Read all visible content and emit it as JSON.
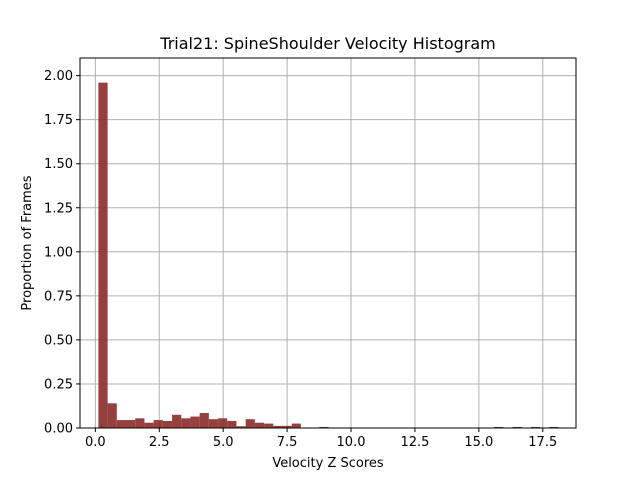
{
  "chart_data": {
    "type": "bar",
    "title": "Trial21: SpineShoulder Velocity Histogram",
    "xlabel": "Velocity Z Scores",
    "ylabel": "Proportion of Frames",
    "xlim": [
      -0.6,
      18.8
    ],
    "ylim": [
      0,
      2.1
    ],
    "xticks": [
      0.0,
      2.5,
      5.0,
      7.5,
      10.0,
      12.5,
      15.0,
      17.5
    ],
    "xtick_labels": [
      "0.0",
      "2.5",
      "5.0",
      "7.5",
      "10.0",
      "12.5",
      "15.0",
      "17.5"
    ],
    "yticks": [
      0.0,
      0.25,
      0.5,
      0.75,
      1.0,
      1.25,
      1.5,
      1.75,
      2.0
    ],
    "ytick_labels": [
      "0.00",
      "0.25",
      "0.50",
      "0.75",
      "1.00",
      "1.25",
      "1.50",
      "1.75",
      "2.00"
    ],
    "grid": true,
    "bar_color": "#8b2a2a",
    "bin_width": 0.36,
    "bins": [
      {
        "x": 0.3,
        "value": 1.96
      },
      {
        "x": 0.66,
        "value": 0.14
      },
      {
        "x": 1.02,
        "value": 0.045
      },
      {
        "x": 1.38,
        "value": 0.045
      },
      {
        "x": 1.74,
        "value": 0.055
      },
      {
        "x": 2.1,
        "value": 0.03
      },
      {
        "x": 2.46,
        "value": 0.045
      },
      {
        "x": 2.82,
        "value": 0.04
      },
      {
        "x": 3.18,
        "value": 0.075
      },
      {
        "x": 3.54,
        "value": 0.055
      },
      {
        "x": 3.9,
        "value": 0.065
      },
      {
        "x": 4.26,
        "value": 0.085
      },
      {
        "x": 4.62,
        "value": 0.05
      },
      {
        "x": 4.98,
        "value": 0.055
      },
      {
        "x": 5.34,
        "value": 0.04
      },
      {
        "x": 5.7,
        "value": 0.01
      },
      {
        "x": 6.06,
        "value": 0.05
      },
      {
        "x": 6.42,
        "value": 0.03
      },
      {
        "x": 6.78,
        "value": 0.025
      },
      {
        "x": 7.14,
        "value": 0.012
      },
      {
        "x": 7.5,
        "value": 0.012
      },
      {
        "x": 7.86,
        "value": 0.025
      },
      {
        "x": 8.58,
        "value": 0.003
      },
      {
        "x": 8.94,
        "value": 0.006
      },
      {
        "x": 15.78,
        "value": 0.006
      },
      {
        "x": 16.5,
        "value": 0.006
      },
      {
        "x": 17.22,
        "value": 0.006
      },
      {
        "x": 17.94,
        "value": 0.006
      }
    ]
  }
}
